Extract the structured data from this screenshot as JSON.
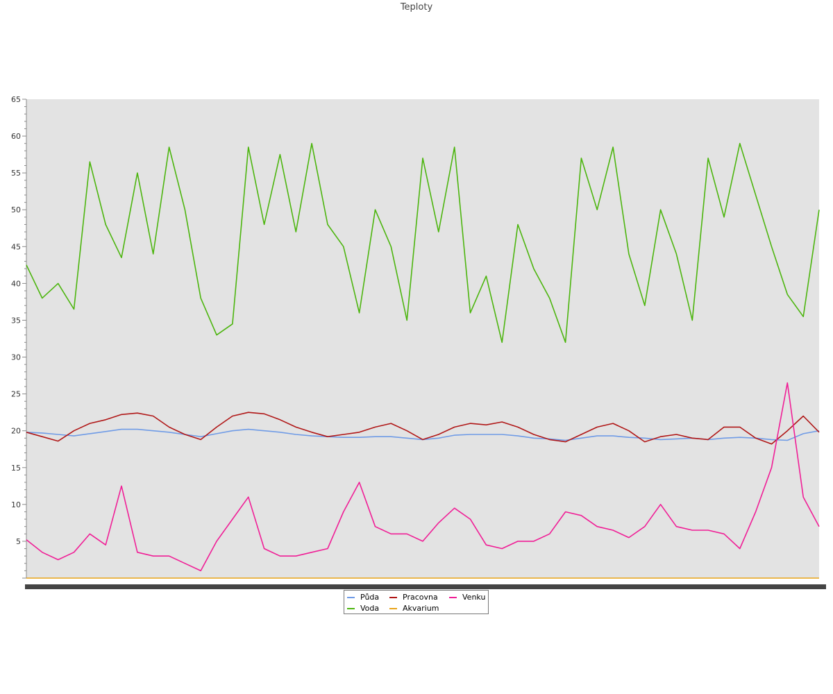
{
  "chart_data": {
    "type": "line",
    "title": "Teploty",
    "ylim": [
      0,
      65
    ],
    "yticks": [
      5,
      10,
      15,
      20,
      25,
      30,
      35,
      40,
      45,
      50,
      55,
      60,
      65
    ],
    "grid": false,
    "legend_position": "bottom-center",
    "x": [
      0,
      0.02,
      0.04,
      0.06,
      0.08,
      0.1,
      0.12,
      0.14,
      0.16,
      0.18,
      0.2,
      0.22,
      0.24,
      0.26,
      0.28,
      0.3,
      0.32,
      0.34,
      0.36,
      0.38,
      0.4,
      0.42,
      0.44,
      0.46,
      0.48,
      0.5,
      0.52,
      0.54,
      0.56,
      0.58,
      0.6,
      0.62,
      0.64,
      0.66,
      0.68,
      0.7,
      0.72,
      0.74,
      0.76,
      0.78,
      0.8,
      0.82,
      0.84,
      0.86,
      0.88,
      0.9,
      0.92,
      0.94,
      0.96,
      0.98,
      1.0
    ],
    "series": [
      {
        "name": "Půda",
        "color": "#6f9be6",
        "values": [
          19.8,
          19.7,
          19.5,
          19.3,
          19.6,
          19.9,
          20.2,
          20.2,
          20.0,
          19.8,
          19.5,
          19.2,
          19.6,
          20.0,
          20.2,
          20.0,
          19.8,
          19.5,
          19.3,
          19.2,
          19.1,
          19.1,
          19.2,
          19.2,
          19.0,
          18.8,
          19.0,
          19.4,
          19.5,
          19.5,
          19.5,
          19.3,
          19.0,
          18.9,
          18.7,
          19.0,
          19.3,
          19.3,
          19.1,
          19.0,
          18.8,
          18.9,
          19.0,
          18.8,
          19.0,
          19.1,
          19.0,
          18.8,
          18.7,
          19.6,
          20.0
        ]
      },
      {
        "name": "Voda",
        "color": "#4cb50e",
        "values": [
          42.5,
          38.0,
          40.0,
          36.5,
          56.5,
          48.0,
          43.5,
          55.0,
          44.0,
          58.5,
          50.0,
          38.0,
          33.0,
          34.5,
          58.5,
          48.0,
          57.5,
          47.0,
          59.0,
          48.0,
          45.0,
          36.0,
          50.0,
          45.0,
          35.0,
          57.0,
          47.0,
          58.5,
          36.0,
          41.0,
          32.0,
          48.0,
          42.0,
          38.0,
          32.0,
          57.0,
          50.0,
          58.5,
          44.0,
          37.0,
          50.0,
          44.0,
          35.0,
          57.0,
          49.0,
          59.0,
          52.0,
          45.0,
          38.5,
          35.5,
          50.0
        ]
      },
      {
        "name": "Pracovna",
        "color": "#b01616",
        "values": [
          19.8,
          19.2,
          18.6,
          20.0,
          21.0,
          21.5,
          22.2,
          22.4,
          22.0,
          20.5,
          19.5,
          18.8,
          20.5,
          22.0,
          22.5,
          22.3,
          21.5,
          20.5,
          19.8,
          19.2,
          19.5,
          19.8,
          20.5,
          21.0,
          20.0,
          18.8,
          19.5,
          20.5,
          21.0,
          20.8,
          21.2,
          20.5,
          19.5,
          18.8,
          18.5,
          19.5,
          20.5,
          21.0,
          20.0,
          18.5,
          19.2,
          19.5,
          19.0,
          18.8,
          20.5,
          20.5,
          19.0,
          18.2,
          20.0,
          22.0,
          19.8
        ]
      },
      {
        "name": "Akvarium",
        "color": "#e8a317",
        "values": [
          0,
          0,
          0,
          0,
          0,
          0,
          0,
          0,
          0,
          0,
          0,
          0,
          0,
          0,
          0,
          0,
          0,
          0,
          0,
          0,
          0,
          0,
          0,
          0,
          0,
          0,
          0,
          0,
          0,
          0,
          0,
          0,
          0,
          0,
          0,
          0,
          0,
          0,
          0,
          0,
          0,
          0,
          0,
          0,
          0,
          0,
          0,
          0,
          0,
          0,
          0
        ]
      },
      {
        "name": "Venku",
        "color": "#f01e96",
        "values": [
          5.2,
          3.5,
          2.5,
          3.5,
          6.0,
          4.5,
          12.5,
          3.5,
          3.0,
          3.0,
          2.0,
          1.0,
          5.0,
          8.0,
          11.0,
          4.0,
          3.0,
          3.0,
          3.5,
          4.0,
          9.0,
          13.0,
          7.0,
          6.0,
          6.0,
          5.0,
          7.5,
          9.5,
          8.0,
          4.5,
          4.0,
          5.0,
          5.0,
          6.0,
          9.0,
          8.5,
          7.0,
          6.5,
          5.5,
          7.0,
          10.0,
          7.0,
          6.5,
          6.5,
          6.0,
          4.0,
          9.0,
          15.0,
          26.5,
          11.0,
          7.0
        ]
      }
    ]
  }
}
